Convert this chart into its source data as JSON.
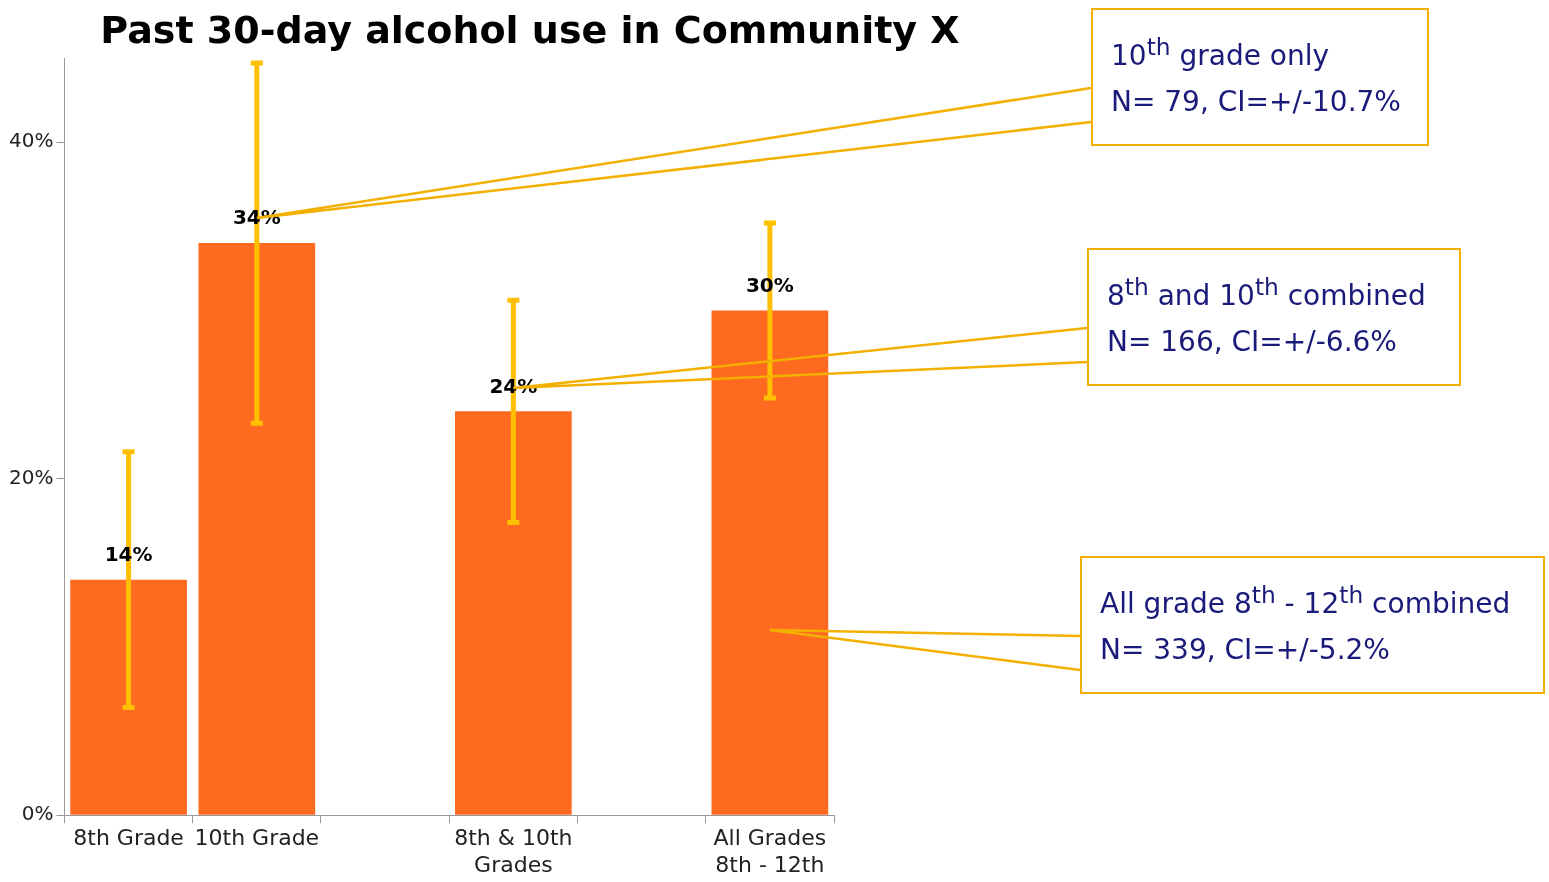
{
  "chart_data": {
    "type": "bar",
    "title": "Past 30-day alcohol use in Community X",
    "categories": [
      "8th Grade",
      "10th Grade",
      null,
      "8th & 10th Grades",
      null,
      "All Grades 8th - 12th"
    ],
    "values": [
      14,
      34,
      null,
      24,
      null,
      30
    ],
    "value_labels": [
      "14%",
      "34%",
      null,
      "24%",
      null,
      "30%"
    ],
    "errors": [
      7.6,
      10.7,
      null,
      6.6,
      null,
      5.2
    ],
    "color": "#ff6a21",
    "ylim": [
      0,
      45
    ],
    "yticks": [
      {
        "value": 0,
        "label": "0%"
      },
      {
        "value": 20,
        "label": "20%"
      },
      {
        "value": 40,
        "label": "40%"
      }
    ],
    "grid": false,
    "legend": false,
    "annotations": [
      "10$^{th}$ grade only\nN= 79, CI=+/-10.7%",
      "8$^{th}$ and 10$^{th}$ combined\nN= 166, CI=+/-6.6%",
      "All grade 8$^{th}$ - 12$^{th}$ combined\nN= 339, CI=+/-5.2%"
    ]
  }
}
